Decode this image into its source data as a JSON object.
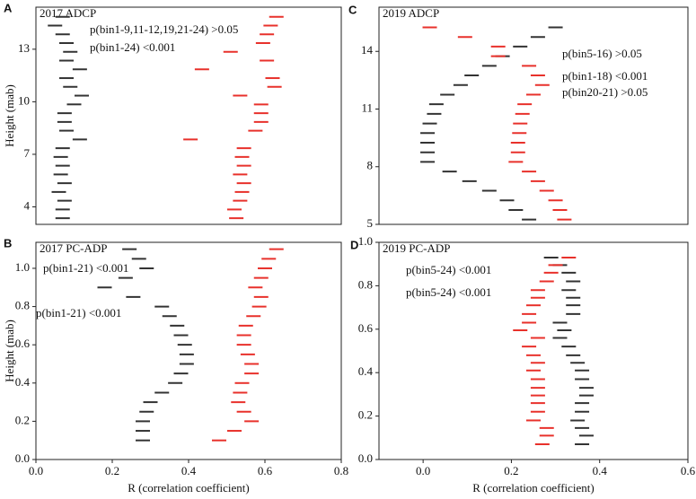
{
  "chart_data": [
    {
      "type": "dash",
      "panel": "A",
      "title": "2017 ADCP",
      "ylabel": "Height (mab)",
      "xlim": [
        0,
        0.8
      ],
      "ylim": [
        3,
        15.4
      ],
      "yticks": [
        4,
        7,
        10,
        13
      ],
      "heights": [
        3.35,
        3.85,
        4.35,
        4.85,
        5.35,
        5.85,
        6.35,
        6.85,
        7.35,
        7.85,
        8.35,
        8.85,
        9.35,
        9.85,
        10.35,
        10.85,
        11.35,
        11.85,
        12.35,
        12.85,
        13.35,
        13.85,
        14.35,
        14.85
      ],
      "annotations": [
        {
          "text": "p(bin1-9,11-12,19,21-24) >0.05",
          "color": "#111111"
        },
        {
          "text": "p(bin1-24) <0.001",
          "color": "#e8312b"
        }
      ],
      "series": [
        {
          "color": "#333333",
          "values": [
            0.07,
            0.07,
            0.075,
            0.06,
            0.075,
            0.065,
            0.07,
            0.065,
            0.07,
            0.115,
            0.08,
            0.075,
            0.075,
            0.1,
            0.12,
            0.09,
            0.08,
            0.115,
            0.08,
            0.09,
            0.08,
            0.07,
            0.05,
            0.07
          ]
        },
        {
          "color": "#e8312b",
          "values": [
            0.525,
            0.52,
            0.535,
            0.54,
            0.545,
            0.535,
            0.545,
            0.54,
            0.545,
            0.405,
            0.575,
            0.59,
            0.59,
            0.59,
            0.535,
            0.625,
            0.62,
            0.435,
            0.605,
            0.51,
            0.595,
            0.605,
            0.615,
            0.63
          ]
        }
      ]
    },
    {
      "type": "dash",
      "panel": "B",
      "title": "2017 PC-ADP",
      "ylabel": "Height (mab)",
      "xlabel": "R (correlation coefficient)",
      "xlim": [
        0,
        0.8
      ],
      "xticks": [
        {
          "value": 0,
          "label": "0.0"
        },
        {
          "value": 0.2,
          "label": "0.2"
        },
        {
          "value": 0.4,
          "label": "0.4"
        },
        {
          "value": 0.6,
          "label": "0.6"
        },
        {
          "value": 0.8,
          "label": "0.8"
        }
      ],
      "ylim": [
        0,
        1.136
      ],
      "yticks": [
        {
          "value": 0,
          "label": "0.0"
        },
        {
          "value": 0.2,
          "label": "0.2"
        },
        {
          "value": 0.4,
          "label": "0.4"
        },
        {
          "value": 0.6,
          "label": "0.6"
        },
        {
          "value": 0.8,
          "label": "0.8"
        },
        {
          "value": 1,
          "label": "1.0"
        }
      ],
      "heights": [
        0.1,
        0.15,
        0.2,
        0.25,
        0.3,
        0.35,
        0.4,
        0.45,
        0.5,
        0.55,
        0.6,
        0.65,
        0.7,
        0.75,
        0.8,
        0.85,
        0.9,
        0.95,
        1.0,
        1.05,
        1.1
      ],
      "annotations": [
        {
          "text": "p(bin1-21) <0.001",
          "color": "#111111"
        },
        {
          "text": "p(bin1-21) <0.001",
          "color": "#e8312b"
        }
      ],
      "series": [
        {
          "color": "#333333",
          "values": [
            0.28,
            0.28,
            0.28,
            0.29,
            0.3,
            0.33,
            0.365,
            0.38,
            0.395,
            0.395,
            0.39,
            0.38,
            0.37,
            0.35,
            0.33,
            0.255,
            0.18,
            0.235,
            0.29,
            0.27,
            0.245
          ]
        },
        {
          "color": "#e8312b",
          "values": [
            0.48,
            0.52,
            0.565,
            0.545,
            0.53,
            0.535,
            0.54,
            0.565,
            0.565,
            0.555,
            0.545,
            0.545,
            0.55,
            0.57,
            0.585,
            0.59,
            0.575,
            0.59,
            0.6,
            0.61,
            0.63
          ]
        }
      ]
    },
    {
      "type": "dash",
      "panel": "C",
      "title": "2019 ADCP",
      "xlim": [
        -0.1,
        0.6
      ],
      "ylim": [
        5,
        16.3
      ],
      "yticks": [
        5,
        8,
        11,
        14
      ],
      "heights": [
        5.25,
        5.75,
        6.25,
        6.75,
        7.25,
        7.75,
        8.25,
        8.75,
        9.25,
        9.75,
        10.25,
        10.75,
        11.25,
        11.75,
        12.25,
        12.75,
        13.25,
        13.75,
        14.25,
        14.75,
        15.25
      ],
      "annotations": [
        {
          "text": "p(bin5-16) >0.05",
          "color": "#111111"
        },
        {
          "text": "p(bin1-18) <0.001",
          "color": "#e8312b"
        },
        {
          "text": "p(bin20-21) >0.05",
          "color": "#e8312b"
        }
      ],
      "series": [
        {
          "color": "#333333",
          "values": [
            0.24,
            0.21,
            0.19,
            0.15,
            0.105,
            0.06,
            0.01,
            0.01,
            0.01,
            0.01,
            0.015,
            0.025,
            0.03,
            0.055,
            0.085,
            0.11,
            0.15,
            0.18,
            0.22,
            0.26,
            0.3
          ]
        },
        {
          "color": "#e8312b",
          "values": [
            0.32,
            0.31,
            0.3,
            0.28,
            0.26,
            0.24,
            0.21,
            0.215,
            0.215,
            0.218,
            0.22,
            0.225,
            0.23,
            0.25,
            0.27,
            0.26,
            0.24,
            0.17,
            0.17,
            0.095,
            0.015
          ]
        }
      ]
    },
    {
      "type": "dash",
      "panel": "D",
      "title": "2019 PC-ADP",
      "xlabel": "R (correlation coefficient)",
      "xlim": [
        -0.1,
        0.6
      ],
      "xticks": [
        {
          "value": 0,
          "label": "0.0"
        },
        {
          "value": 0.2,
          "label": "0.2"
        },
        {
          "value": 0.4,
          "label": "0.4"
        },
        {
          "value": 0.6,
          "label": "0.6"
        }
      ],
      "ylim": [
        0,
        1
      ],
      "yticks": [
        {
          "value": 0,
          "label": "0.0"
        },
        {
          "value": 0.2,
          "label": "0.2"
        },
        {
          "value": 0.4,
          "label": "0.4"
        },
        {
          "value": 0.6,
          "label": "0.6"
        },
        {
          "value": 0.8,
          "label": "0.8"
        },
        {
          "value": 1,
          "label": "1.0"
        }
      ],
      "heights": [
        0.07,
        0.11,
        0.145,
        0.18,
        0.22,
        0.26,
        0.295,
        0.33,
        0.37,
        0.41,
        0.445,
        0.48,
        0.52,
        0.56,
        0.595,
        0.63,
        0.67,
        0.71,
        0.745,
        0.78,
        0.82,
        0.86,
        0.895,
        0.93
      ],
      "annotations": [
        {
          "text": "p(bin5-24) <0.001",
          "color": "#111111"
        },
        {
          "text": "p(bin5-24) <0.001",
          "color": "#e8312b"
        }
      ],
      "series": [
        {
          "color": "#333333",
          "values": [
            0.36,
            0.37,
            0.36,
            0.35,
            0.36,
            0.36,
            0.37,
            0.37,
            0.36,
            0.36,
            0.35,
            0.34,
            0.33,
            0.31,
            0.32,
            0.31,
            0.34,
            0.34,
            0.34,
            0.33,
            0.34,
            0.33,
            0.31,
            0.29
          ]
        },
        {
          "color": "#e8312b",
          "values": [
            0.27,
            0.28,
            0.28,
            0.25,
            0.26,
            0.26,
            0.26,
            0.26,
            0.26,
            0.25,
            0.26,
            0.25,
            0.24,
            0.26,
            0.22,
            0.24,
            0.24,
            0.25,
            0.26,
            0.26,
            0.28,
            0.29,
            0.3,
            0.33
          ]
        }
      ]
    }
  ]
}
